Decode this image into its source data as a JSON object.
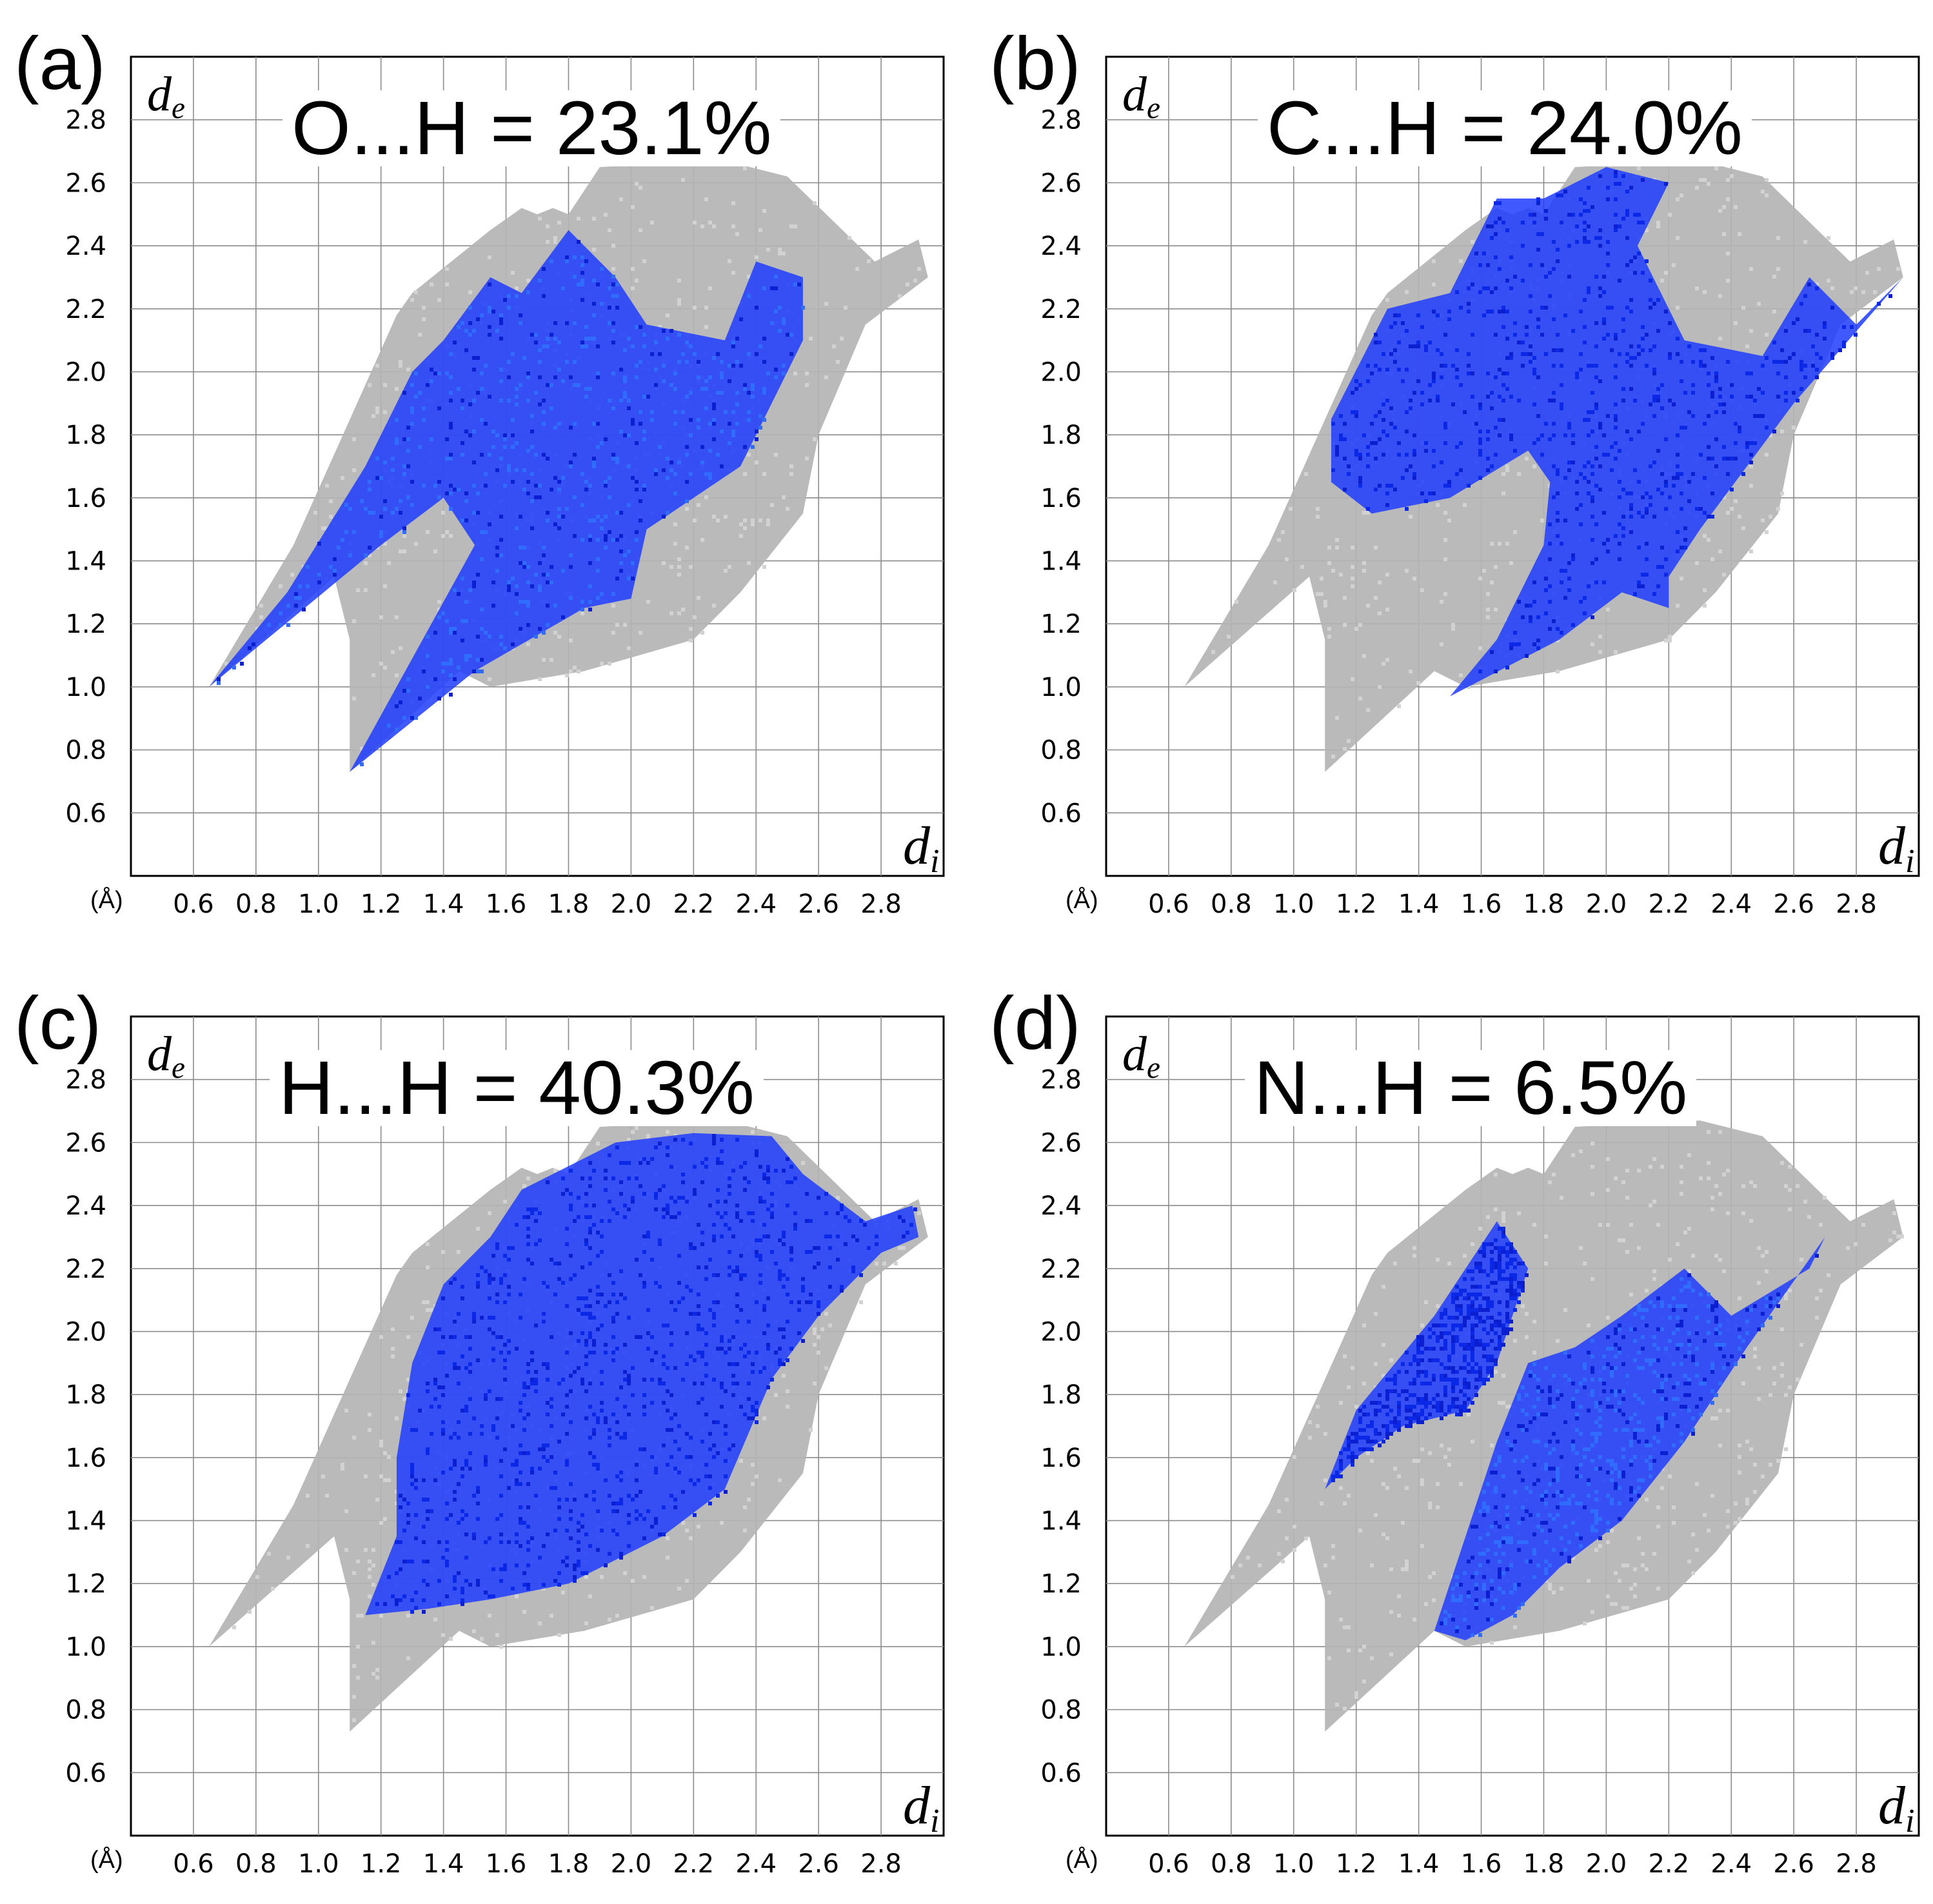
{
  "figure": {
    "panels": [
      {
        "id": "a",
        "label": "(a)",
        "title": "O...H = 23.1%",
        "contact": "O...H",
        "percent": 23.1
      },
      {
        "id": "b",
        "label": "(b)",
        "title": "C...H = 24.0%",
        "contact": "C...H",
        "percent": 24.0
      },
      {
        "id": "c",
        "label": "(c)",
        "title": "H...H = 40.3%",
        "contact": "H...H",
        "percent": 40.3
      },
      {
        "id": "d",
        "label": "(d)",
        "title": "N...H = 6.5%",
        "contact": "N...H",
        "percent": 6.5
      }
    ]
  },
  "chart_data": [
    {
      "type": "scatter",
      "title": "O...H = 23.1%",
      "xlabel": "d_i",
      "ylabel": "d_e",
      "unit_label": "(Å)",
      "xlim": [
        0.4,
        3.0
      ],
      "ylim": [
        0.4,
        3.0
      ],
      "xticks": [
        "0.6",
        "0.8",
        "1.0",
        "1.2",
        "1.4",
        "1.6",
        "1.8",
        "2.0",
        "2.2",
        "2.4",
        "2.6",
        "2.8"
      ],
      "yticks": [
        "0.6",
        "0.8",
        "1.0",
        "1.2",
        "1.4",
        "1.6",
        "1.8",
        "2.0",
        "2.2",
        "2.4",
        "2.6",
        "2.8"
      ],
      "grid": true,
      "series": [
        {
          "name": "all contacts",
          "color": "#b4b4b4",
          "outline": [
            [
              0.65,
              1.0
            ],
            [
              1.05,
              1.35
            ],
            [
              1.1,
              1.15
            ],
            [
              1.1,
              0.73
            ],
            [
              1.45,
              1.05
            ],
            [
              1.55,
              1.0
            ],
            [
              1.85,
              1.05
            ],
            [
              2.2,
              1.15
            ],
            [
              2.35,
              1.3
            ],
            [
              2.55,
              1.55
            ],
            [
              2.6,
              1.8
            ],
            [
              2.75,
              2.15
            ],
            [
              2.95,
              2.3
            ],
            [
              2.92,
              2.42
            ],
            [
              2.78,
              2.35
            ],
            [
              2.5,
              2.62
            ],
            [
              2.3,
              2.67
            ],
            [
              1.9,
              2.65
            ],
            [
              1.8,
              2.5
            ],
            [
              1.75,
              2.52
            ],
            [
              1.7,
              2.5
            ],
            [
              1.65,
              2.52
            ],
            [
              1.55,
              2.45
            ],
            [
              1.3,
              2.25
            ],
            [
              1.25,
              2.18
            ],
            [
              0.92,
              1.45
            ]
          ]
        },
        {
          "name": "O...H",
          "color": "#1e3cff",
          "outline": [
            [
              0.65,
              1.0
            ],
            [
              1.2,
              1.45
            ],
            [
              1.4,
              1.6
            ],
            [
              1.5,
              1.45
            ],
            [
              1.1,
              0.73
            ],
            [
              1.5,
              1.05
            ],
            [
              1.85,
              1.25
            ],
            [
              2.0,
              1.28
            ],
            [
              2.05,
              1.5
            ],
            [
              2.35,
              1.7
            ],
            [
              2.55,
              2.1
            ],
            [
              2.55,
              2.3
            ],
            [
              2.4,
              2.35
            ],
            [
              2.3,
              2.1
            ],
            [
              2.05,
              2.15
            ],
            [
              1.95,
              2.3
            ],
            [
              1.8,
              2.45
            ],
            [
              1.65,
              2.25
            ],
            [
              1.55,
              2.3
            ],
            [
              1.4,
              2.1
            ],
            [
              1.3,
              2.0
            ],
            [
              1.15,
              1.7
            ],
            [
              0.9,
              1.3
            ]
          ]
        }
      ]
    },
    {
      "type": "scatter",
      "title": "C...H = 24.0%",
      "xlabel": "d_i",
      "ylabel": "d_e",
      "unit_label": "(Å)",
      "xlim": [
        0.4,
        3.0
      ],
      "ylim": [
        0.4,
        3.0
      ],
      "xticks": [
        "0.6",
        "0.8",
        "1.0",
        "1.2",
        "1.4",
        "1.6",
        "1.8",
        "2.0",
        "2.2",
        "2.4",
        "2.6",
        "2.8"
      ],
      "yticks": [
        "0.6",
        "0.8",
        "1.0",
        "1.2",
        "1.4",
        "1.6",
        "1.8",
        "2.0",
        "2.2",
        "2.4",
        "2.6",
        "2.8"
      ],
      "grid": true,
      "series": [
        {
          "name": "all contacts",
          "color": "#b4b4b4",
          "outline": [
            [
              0.65,
              1.0
            ],
            [
              1.05,
              1.35
            ],
            [
              1.1,
              1.15
            ],
            [
              1.1,
              0.73
            ],
            [
              1.45,
              1.05
            ],
            [
              1.55,
              1.0
            ],
            [
              1.85,
              1.05
            ],
            [
              2.2,
              1.15
            ],
            [
              2.35,
              1.3
            ],
            [
              2.55,
              1.55
            ],
            [
              2.6,
              1.8
            ],
            [
              2.75,
              2.15
            ],
            [
              2.95,
              2.3
            ],
            [
              2.92,
              2.42
            ],
            [
              2.78,
              2.35
            ],
            [
              2.5,
              2.62
            ],
            [
              2.3,
              2.67
            ],
            [
              1.9,
              2.65
            ],
            [
              1.8,
              2.5
            ],
            [
              1.75,
              2.52
            ],
            [
              1.7,
              2.5
            ],
            [
              1.65,
              2.52
            ],
            [
              1.55,
              2.45
            ],
            [
              1.3,
              2.25
            ],
            [
              1.25,
              2.18
            ],
            [
              0.92,
              1.45
            ]
          ]
        },
        {
          "name": "C...H",
          "color": "#1e3cff",
          "outline": [
            [
              1.12,
              1.65
            ],
            [
              1.12,
              1.85
            ],
            [
              1.3,
              2.2
            ],
            [
              1.5,
              2.25
            ],
            [
              1.65,
              2.55
            ],
            [
              1.8,
              2.55
            ],
            [
              2.0,
              2.65
            ],
            [
              2.2,
              2.6
            ],
            [
              2.1,
              2.4
            ],
            [
              2.25,
              2.1
            ],
            [
              2.5,
              2.05
            ],
            [
              2.65,
              2.3
            ],
            [
              2.8,
              2.15
            ],
            [
              2.95,
              2.3
            ],
            [
              2.6,
              1.9
            ],
            [
              2.45,
              1.7
            ],
            [
              2.3,
              1.5
            ],
            [
              2.2,
              1.35
            ],
            [
              2.2,
              1.25
            ],
            [
              2.05,
              1.3
            ],
            [
              1.85,
              1.15
            ],
            [
              1.5,
              0.97
            ],
            [
              1.65,
              1.15
            ],
            [
              1.8,
              1.45
            ],
            [
              1.82,
              1.65
            ],
            [
              1.75,
              1.75
            ],
            [
              1.5,
              1.6
            ],
            [
              1.25,
              1.55
            ]
          ]
        }
      ]
    },
    {
      "type": "scatter",
      "title": "H...H = 40.3%",
      "xlabel": "d_i",
      "ylabel": "d_e",
      "unit_label": "(Å)",
      "xlim": [
        0.4,
        3.0
      ],
      "ylim": [
        0.4,
        3.0
      ],
      "xticks": [
        "0.6",
        "0.8",
        "1.0",
        "1.2",
        "1.4",
        "1.6",
        "1.8",
        "2.0",
        "2.2",
        "2.4",
        "2.6",
        "2.8"
      ],
      "yticks": [
        "0.6",
        "0.8",
        "1.0",
        "1.2",
        "1.4",
        "1.6",
        "1.8",
        "2.0",
        "2.2",
        "2.4",
        "2.6",
        "2.8"
      ],
      "grid": true,
      "series": [
        {
          "name": "all contacts",
          "color": "#b4b4b4",
          "outline": [
            [
              0.65,
              1.0
            ],
            [
              1.05,
              1.35
            ],
            [
              1.1,
              1.15
            ],
            [
              1.1,
              0.73
            ],
            [
              1.45,
              1.05
            ],
            [
              1.55,
              1.0
            ],
            [
              1.85,
              1.05
            ],
            [
              2.2,
              1.15
            ],
            [
              2.35,
              1.3
            ],
            [
              2.55,
              1.55
            ],
            [
              2.6,
              1.8
            ],
            [
              2.75,
              2.15
            ],
            [
              2.95,
              2.3
            ],
            [
              2.92,
              2.42
            ],
            [
              2.78,
              2.35
            ],
            [
              2.5,
              2.62
            ],
            [
              2.3,
              2.67
            ],
            [
              1.9,
              2.65
            ],
            [
              1.8,
              2.5
            ],
            [
              1.75,
              2.52
            ],
            [
              1.7,
              2.5
            ],
            [
              1.65,
              2.52
            ],
            [
              1.55,
              2.45
            ],
            [
              1.3,
              2.25
            ],
            [
              1.25,
              2.18
            ],
            [
              0.92,
              1.45
            ]
          ]
        },
        {
          "name": "H...H",
          "color": "#1e3cff",
          "outline": [
            [
              1.15,
              1.1
            ],
            [
              1.35,
              1.12
            ],
            [
              1.55,
              1.15
            ],
            [
              1.8,
              1.2
            ],
            [
              2.1,
              1.35
            ],
            [
              2.3,
              1.5
            ],
            [
              2.45,
              1.85
            ],
            [
              2.6,
              2.05
            ],
            [
              2.8,
              2.25
            ],
            [
              2.92,
              2.3
            ],
            [
              2.9,
              2.4
            ],
            [
              2.75,
              2.35
            ],
            [
              2.55,
              2.5
            ],
            [
              2.45,
              2.62
            ],
            [
              2.2,
              2.63
            ],
            [
              1.95,
              2.6
            ],
            [
              1.65,
              2.45
            ],
            [
              1.55,
              2.3
            ],
            [
              1.4,
              2.15
            ],
            [
              1.3,
              1.9
            ],
            [
              1.25,
              1.6
            ],
            [
              1.25,
              1.35
            ]
          ]
        }
      ]
    },
    {
      "type": "scatter",
      "title": "N...H = 6.5%",
      "xlabel": "d_i",
      "ylabel": "d_e",
      "unit_label": "(Å)",
      "xlim": [
        0.4,
        3.0
      ],
      "ylim": [
        0.4,
        3.0
      ],
      "xticks": [
        "0.6",
        "0.8",
        "1.0",
        "1.2",
        "1.4",
        "1.6",
        "1.8",
        "2.0",
        "2.2",
        "2.4",
        "2.6",
        "2.8"
      ],
      "yticks": [
        "0.6",
        "0.8",
        "1.0",
        "1.2",
        "1.4",
        "1.6",
        "1.8",
        "2.0",
        "2.2",
        "2.4",
        "2.6",
        "2.8"
      ],
      "grid": true,
      "series": [
        {
          "name": "all contacts",
          "color": "#b4b4b4",
          "outline": [
            [
              0.65,
              1.0
            ],
            [
              1.05,
              1.35
            ],
            [
              1.1,
              1.15
            ],
            [
              1.1,
              0.73
            ],
            [
              1.45,
              1.05
            ],
            [
              1.55,
              1.0
            ],
            [
              1.85,
              1.05
            ],
            [
              2.2,
              1.15
            ],
            [
              2.35,
              1.3
            ],
            [
              2.55,
              1.55
            ],
            [
              2.6,
              1.8
            ],
            [
              2.75,
              2.15
            ],
            [
              2.95,
              2.3
            ],
            [
              2.92,
              2.42
            ],
            [
              2.78,
              2.35
            ],
            [
              2.5,
              2.62
            ],
            [
              2.3,
              2.67
            ],
            [
              1.9,
              2.65
            ],
            [
              1.8,
              2.5
            ],
            [
              1.75,
              2.52
            ],
            [
              1.7,
              2.5
            ],
            [
              1.65,
              2.52
            ],
            [
              1.55,
              2.45
            ],
            [
              1.3,
              2.25
            ],
            [
              1.25,
              2.18
            ],
            [
              0.92,
              1.45
            ]
          ]
        },
        {
          "name": "N...H",
          "color": "#1e3cff",
          "outline": [
            [
              1.1,
              1.5
            ],
            [
              1.2,
              1.75
            ],
            [
              1.45,
              2.05
            ],
            [
              1.65,
              2.35
            ],
            [
              1.75,
              2.2
            ],
            [
              1.65,
              1.9
            ],
            [
              1.55,
              1.75
            ],
            [
              1.35,
              1.7
            ],
            [
              1.2,
              1.6
            ]
          ]
        },
        {
          "name": "N...H",
          "color": "#1e3cff",
          "outline": [
            [
              1.45,
              1.05
            ],
            [
              1.55,
              1.02
            ],
            [
              1.7,
              1.1
            ],
            [
              1.85,
              1.25
            ],
            [
              2.05,
              1.4
            ],
            [
              2.25,
              1.65
            ],
            [
              2.45,
              1.95
            ],
            [
              2.7,
              2.3
            ],
            [
              2.65,
              2.2
            ],
            [
              2.4,
              2.05
            ],
            [
              2.25,
              2.2
            ],
            [
              2.05,
              2.05
            ],
            [
              1.9,
              1.95
            ],
            [
              1.75,
              1.9
            ],
            [
              1.65,
              1.65
            ],
            [
              1.55,
              1.35
            ]
          ]
        }
      ]
    }
  ]
}
